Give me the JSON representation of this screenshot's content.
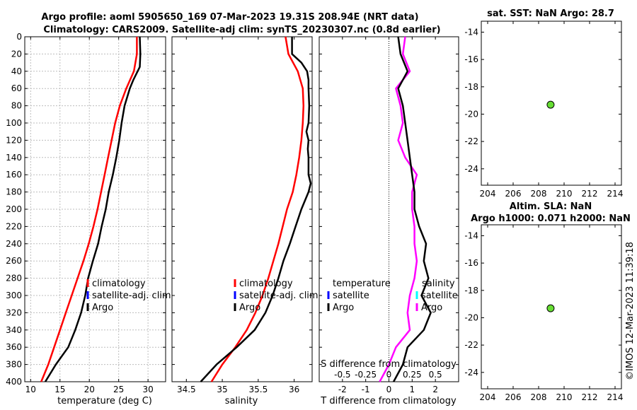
{
  "header": {
    "title_line1": "Argo profile: aoml 5905650_169 07-Mar-2023 19.31S 208.94E (NRT data)",
    "title_line2": "Climatology: CARS2009. Satellite-adj clim: synTS_20230307.nc (0.8d earlier)"
  },
  "watermark": "©IMOS 12-Mar-2023 11:39:18",
  "legend": {
    "clim": "climatology",
    "sat_clim": "satellite-adj. clim",
    "argo": "Argo",
    "temperature": "temperature",
    "salinity": "salinity",
    "satellite": "satellite"
  },
  "colors": {
    "clim": "#ff0000",
    "sat": "#0000ff",
    "argo": "#000000",
    "sal_diff": "#ff00ff",
    "sat_sal": "#00ffff",
    "marker": "#66dd33"
  },
  "chart_data": [
    {
      "type": "line",
      "id": "temperature",
      "xlabel": "temperature (deg C)",
      "ylabel": "depth",
      "xlim": [
        9,
        33
      ],
      "ylim": [
        0,
        400
      ],
      "xticks": [
        10,
        15,
        20,
        25,
        30
      ],
      "yticks": [
        0,
        20,
        40,
        60,
        80,
        100,
        120,
        140,
        160,
        180,
        200,
        220,
        240,
        260,
        280,
        300,
        320,
        340,
        360,
        380,
        400
      ],
      "grid": true,
      "series": [
        {
          "name": "climatology",
          "color": "#ff0000",
          "depth": [
            0,
            20,
            40,
            60,
            80,
            100,
            120,
            140,
            160,
            180,
            200,
            220,
            240,
            260,
            280,
            300,
            320,
            340,
            360,
            380,
            400
          ],
          "x": [
            28.1,
            28.1,
            27.6,
            26.3,
            25.2,
            24.4,
            23.8,
            23.2,
            22.6,
            22.0,
            21.4,
            20.7,
            19.9,
            19.0,
            18.0,
            17.0,
            16.0,
            15.0,
            14.0,
            13.0,
            11.8
          ]
        },
        {
          "name": "Argo",
          "color": "#000000",
          "depth": [
            0,
            20,
            35,
            50,
            60,
            80,
            100,
            120,
            140,
            160,
            180,
            200,
            220,
            240,
            260,
            280,
            300,
            320,
            340,
            360,
            380,
            400
          ],
          "x": [
            28.6,
            28.7,
            28.6,
            27.5,
            26.9,
            26.0,
            25.5,
            25.1,
            24.6,
            24.0,
            23.3,
            22.8,
            22.1,
            21.5,
            20.6,
            19.8,
            19.3,
            18.6,
            17.6,
            16.4,
            14.3,
            12.5
          ]
        }
      ]
    },
    {
      "type": "line",
      "id": "salinity",
      "xlabel": "salinity",
      "ylim": [
        0,
        400
      ],
      "xlim": [
        34.3,
        36.25
      ],
      "xticks": [
        34.5,
        35,
        35.5,
        36
      ],
      "tick_labels": [
        "34.5",
        "35",
        "35.5",
        "36"
      ],
      "series": [
        {
          "name": "climatology",
          "color": "#ff0000",
          "depth": [
            0,
            20,
            40,
            60,
            80,
            100,
            120,
            140,
            160,
            180,
            200,
            220,
            240,
            260,
            280,
            300,
            320,
            340,
            360,
            380,
            400
          ],
          "x": [
            35.88,
            35.92,
            36.05,
            36.12,
            36.13,
            36.12,
            36.1,
            36.07,
            36.03,
            35.98,
            35.9,
            35.84,
            35.78,
            35.71,
            35.64,
            35.56,
            35.46,
            35.34,
            35.18,
            35.0,
            34.85
          ]
        },
        {
          "name": "Argo",
          "color": "#000000",
          "depth": [
            0,
            20,
            30,
            40,
            50,
            60,
            80,
            100,
            110,
            120,
            130,
            140,
            160,
            170,
            180,
            200,
            220,
            240,
            260,
            280,
            300,
            320,
            340,
            360,
            380,
            400
          ],
          "x": [
            35.97,
            35.97,
            36.1,
            36.18,
            36.2,
            36.2,
            36.21,
            36.2,
            36.17,
            36.2,
            36.19,
            36.2,
            36.2,
            36.23,
            36.2,
            36.1,
            36.02,
            35.94,
            35.85,
            35.78,
            35.7,
            35.6,
            35.45,
            35.2,
            34.92,
            34.7
          ]
        }
      ]
    },
    {
      "type": "line",
      "id": "difference",
      "xlabel": "T difference from climatology",
      "xlabel_top": "S difference from climatology",
      "ylim": [
        0,
        400
      ],
      "xlim": [
        -3,
        3
      ],
      "xticks": [
        -2,
        -1,
        0,
        1,
        2
      ],
      "xticks_S": [
        -0.5,
        -0.25,
        0,
        0.25,
        0.5
      ],
      "tick_labels_S": [
        "-0.5",
        "-0.25",
        "0",
        "0.25",
        "0.5"
      ],
      "series": [
        {
          "name": "salinity",
          "color": "#ff00ff",
          "depth": [
            0,
            20,
            40,
            60,
            80,
            100,
            120,
            140,
            160,
            180,
            200,
            220,
            240,
            260,
            280,
            300,
            320,
            340,
            360,
            380,
            400
          ],
          "x": [
            0.7,
            0.6,
            0.9,
            0.3,
            0.5,
            0.6,
            0.4,
            0.7,
            1.2,
            1.0,
            1.0,
            1.1,
            1.1,
            1.2,
            1.1,
            0.9,
            0.8,
            0.9,
            0.3,
            0.0,
            -0.4
          ]
        },
        {
          "name": "temperature",
          "color": "#000000",
          "depth": [
            0,
            20,
            40,
            60,
            80,
            100,
            120,
            140,
            160,
            180,
            200,
            220,
            240,
            260,
            280,
            300,
            320,
            340,
            360,
            380,
            400
          ],
          "x": [
            0.4,
            0.5,
            0.8,
            0.4,
            0.6,
            0.7,
            0.8,
            0.9,
            1.0,
            1.1,
            1.1,
            1.3,
            1.6,
            1.5,
            1.7,
            1.4,
            1.8,
            1.5,
            0.8,
            0.6,
            0.2
          ]
        }
      ]
    },
    {
      "type": "scatter",
      "id": "map_sst",
      "title": "sat. SST: NaN Argo: 28.7",
      "xlim": [
        203.5,
        214.5
      ],
      "ylim": [
        -25.2,
        -13.2
      ],
      "xticks": [
        204,
        206,
        208,
        210,
        212,
        214
      ],
      "yticks": [
        -14,
        -16,
        -18,
        -20,
        -22,
        -24
      ],
      "points": [
        {
          "x": 208.94,
          "y": -19.31
        }
      ]
    },
    {
      "type": "scatter",
      "id": "map_sla",
      "title": "Altim. SLA: NaN",
      "title2": "Argo h1000: 0.071 h2000: NaN",
      "xlim": [
        203.5,
        214.5
      ],
      "ylim": [
        -25.2,
        -13.2
      ],
      "xticks": [
        204,
        206,
        208,
        210,
        212,
        214
      ],
      "yticks": [
        -14,
        -16,
        -18,
        -20,
        -22,
        -24
      ],
      "points": [
        {
          "x": 208.94,
          "y": -19.31
        }
      ]
    }
  ]
}
